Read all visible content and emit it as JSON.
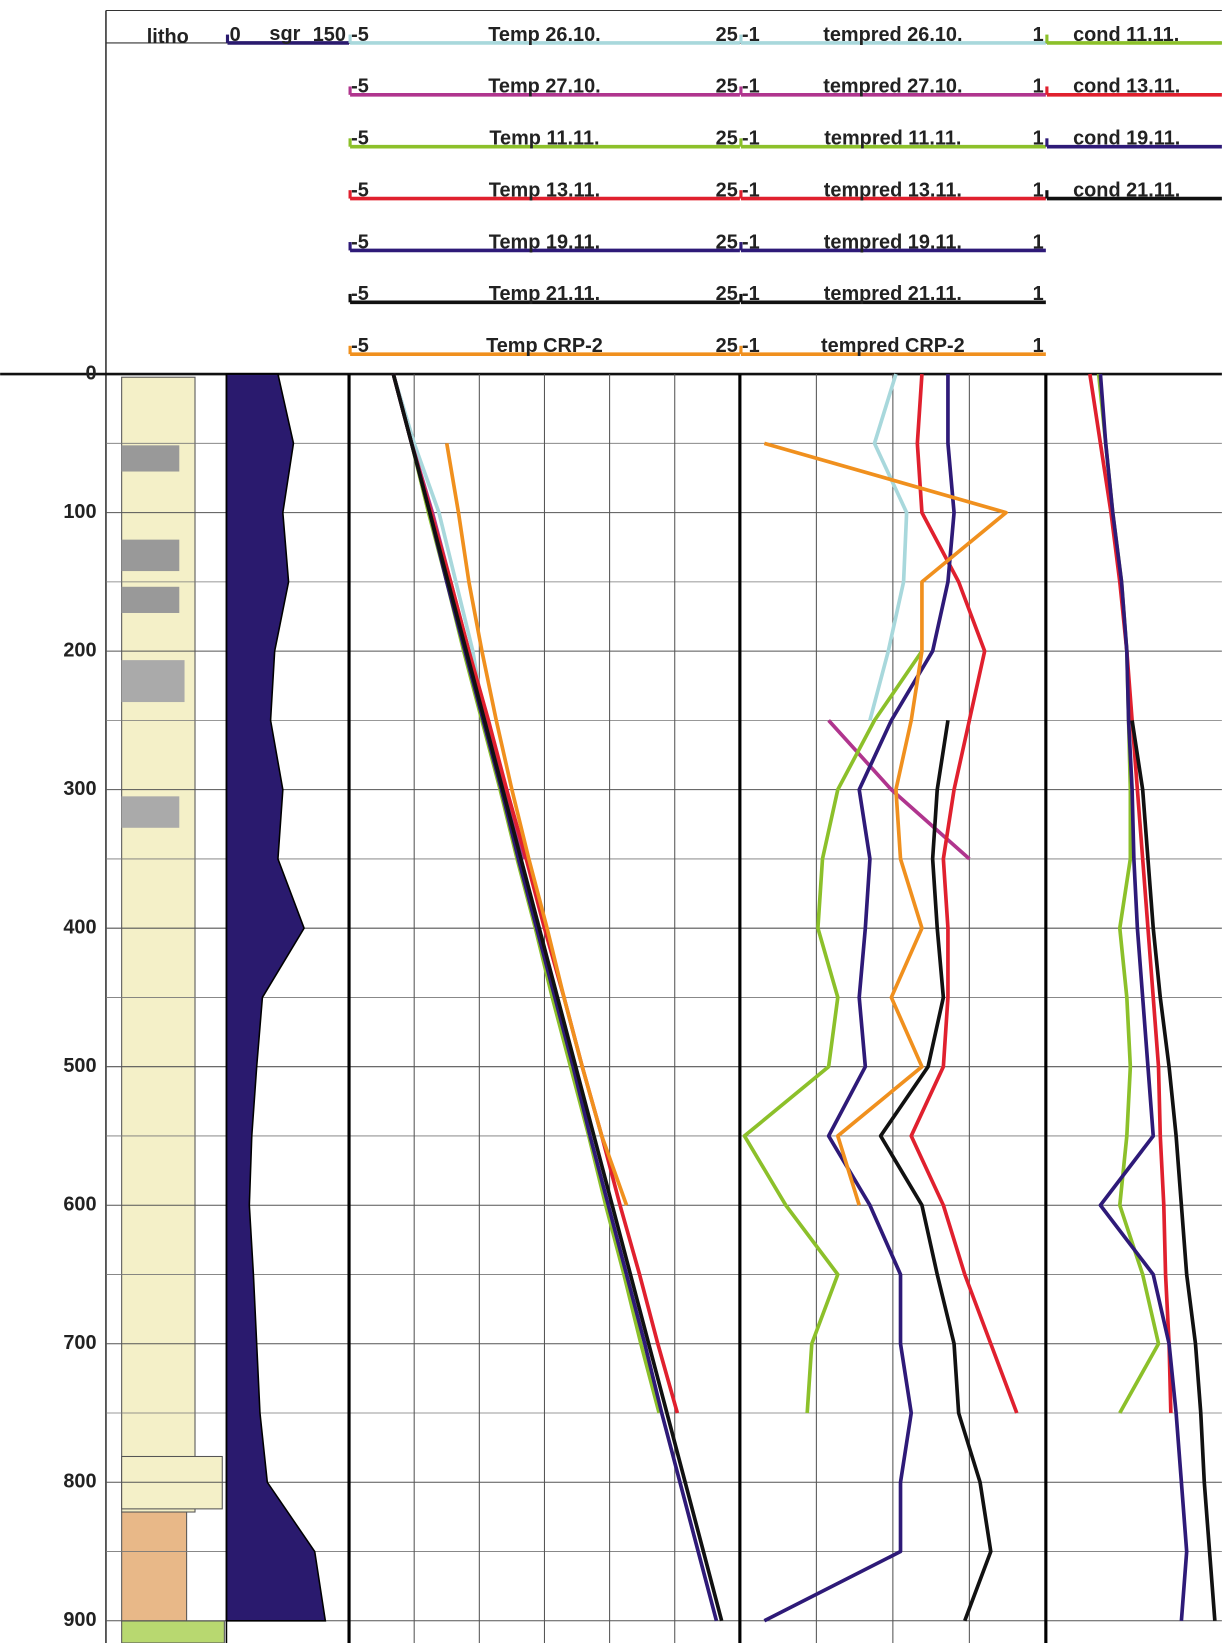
{
  "chart_data": [
    {
      "type": "lithology",
      "title": "litho",
      "xlim": [
        0,
        916
      ],
      "xticks": [
        0,
        100,
        200,
        300,
        400,
        500,
        600,
        700,
        800,
        900
      ],
      "x_minor_ticks": [
        50,
        150,
        250,
        350,
        450,
        550,
        650,
        750,
        850
      ]
    },
    {
      "type": "area",
      "x": [
        0,
        50,
        100,
        150,
        200,
        250,
        300,
        350,
        400,
        450,
        500,
        550,
        600,
        650,
        700,
        750,
        800,
        850,
        900
      ],
      "ylim": [
        0,
        150
      ],
      "series": [
        {
          "name": "sgr",
          "color": "#2a1a6e",
          "values": [
            63,
            82,
            69,
            76,
            59,
            54,
            69,
            63,
            95,
            44,
            37,
            31,
            28,
            33,
            37,
            41,
            50,
            108,
            121
          ]
        }
      ]
    },
    {
      "type": "line",
      "x": [
        0,
        50,
        100,
        150,
        200,
        250,
        300,
        350,
        400,
        450,
        500,
        550,
        600,
        650,
        700,
        750,
        800,
        850,
        900
      ],
      "ylim": [
        -5,
        25
      ],
      "yticks": [
        -5,
        0,
        5,
        10,
        15,
        20,
        25
      ],
      "series": [
        {
          "name": "Temp 26.10.",
          "color": "#a8d8dc",
          "values": [
            -1.6,
            0,
            1.9,
            3.2,
            4.5,
            5.4,
            null,
            null,
            null,
            null,
            null,
            null,
            null,
            null,
            null,
            null,
            null,
            null,
            null
          ]
        },
        {
          "name": "Temp 27.10.",
          "color": "#b0358e",
          "values": [
            -1.6,
            -0.2,
            1.4,
            2.8,
            4.2,
            5.5,
            6.9,
            8.5,
            null,
            null,
            null,
            null,
            null,
            null,
            null,
            null,
            null,
            null,
            null
          ]
        },
        {
          "name": "Temp 11.11.",
          "color": "#8cc02a",
          "values": [
            -1.6,
            -0.2,
            1.1,
            2.5,
            3.8,
            5.2,
            6.6,
            7.9,
            9.3,
            10.6,
            12.0,
            13.4,
            14.7,
            16.1,
            17.4,
            18.8,
            null,
            null,
            null
          ]
        },
        {
          "name": "Temp 13.11.",
          "color": "#e0202e",
          "values": [
            -1.6,
            -0.2,
            1.3,
            2.8,
            4.2,
            5.7,
            7.1,
            8.6,
            10.0,
            11.5,
            12.9,
            14.4,
            15.8,
            17.3,
            18.7,
            20.2,
            null,
            null,
            null
          ]
        },
        {
          "name": "Temp 19.11.",
          "color": "#2e1a78",
          "values": [
            -1.6,
            -0.2,
            1.2,
            2.5,
            3.9,
            5.3,
            6.7,
            8.0,
            9.4,
            10.8,
            12.2,
            13.5,
            14.9,
            16.3,
            17.7,
            19.0,
            20.4,
            21.8,
            23.2
          ]
        },
        {
          "name": "Temp 21.11.",
          "color": "#111111",
          "values": [
            -1.6,
            -0.2,
            1.2,
            2.6,
            4.0,
            5.4,
            6.8,
            8.2,
            9.6,
            11.0,
            12.4,
            13.8,
            15.2,
            16.6,
            18.0,
            19.4,
            20.8,
            22.2,
            23.6
          ]
        },
        {
          "name": "Temp CRP-2",
          "color": "#f0901e",
          "values": [
            null,
            2.5,
            3.4,
            4.2,
            5.2,
            6.3,
            7.5,
            8.8,
            10.2,
            11.5,
            12.9,
            14.4,
            16.3,
            null,
            null,
            null,
            null,
            null,
            null
          ]
        }
      ]
    },
    {
      "type": "line",
      "x": [
        0,
        50,
        100,
        150,
        200,
        250,
        300,
        350,
        400,
        450,
        500,
        550,
        600,
        650,
        700,
        750,
        800,
        850,
        900
      ],
      "ylim": [
        -1,
        1
      ],
      "yticks": [
        -1,
        -0.5,
        0,
        0.5,
        1
      ],
      "series": [
        {
          "name": "tempred 26.10.",
          "color": "#a8d8dc",
          "values": [
            0.02,
            -0.12,
            0.09,
            0.07,
            -0.03,
            -0.15,
            null,
            null,
            null,
            null,
            null,
            null,
            null,
            null,
            null,
            null,
            null,
            null,
            null
          ]
        },
        {
          "name": "tempred 27.10.",
          "color": "#b0358e",
          "values": [
            null,
            null,
            null,
            null,
            null,
            -0.42,
            -0.01,
            0.5,
            null,
            null,
            null,
            null,
            null,
            null,
            null,
            null,
            null,
            null,
            null
          ]
        },
        {
          "name": "tempred 11.11.",
          "color": "#8cc02a",
          "values": [
            null,
            null,
            null,
            null,
            0.19,
            -0.12,
            -0.36,
            -0.46,
            -0.49,
            -0.36,
            -0.42,
            -0.97,
            -0.7,
            -0.36,
            -0.53,
            -0.56,
            null,
            null,
            null
          ]
        },
        {
          "name": "tempred 13.11.",
          "color": "#e0202e",
          "values": [
            0.19,
            0.16,
            0.19,
            0.43,
            0.6,
            0.5,
            0.4,
            0.33,
            0.36,
            0.36,
            0.33,
            0.12,
            0.33,
            0.47,
            0.64,
            0.81,
            null,
            null,
            null
          ]
        },
        {
          "name": "tempred 19.11.",
          "color": "#2e1a78",
          "values": [
            0.36,
            0.36,
            0.4,
            0.36,
            0.26,
            -0.01,
            -0.22,
            -0.15,
            -0.18,
            -0.22,
            -0.18,
            -0.42,
            -0.15,
            0.05,
            0.05,
            0.12,
            0.05,
            0.05,
            -0.84
          ]
        },
        {
          "name": "tempred 21.11.",
          "color": "#111111",
          "values": [
            null,
            null,
            null,
            null,
            null,
            0.36,
            0.29,
            0.26,
            0.29,
            0.33,
            0.23,
            -0.08,
            0.19,
            0.29,
            0.4,
            0.43,
            0.57,
            0.64,
            0.47
          ]
        },
        {
          "name": "tempred CRP-2",
          "color": "#f0901e",
          "values": [
            null,
            -0.84,
            0.74,
            0.19,
            0.19,
            0.12,
            0.02,
            0.05,
            0.19,
            -0.01,
            0.19,
            -0.36,
            -0.22,
            null,
            null,
            null,
            null,
            null,
            null
          ]
        }
      ]
    },
    {
      "type": "line",
      "x": [
        0,
        50,
        100,
        150,
        200,
        250,
        300,
        350,
        400,
        450,
        500,
        550,
        600,
        650,
        700,
        750,
        800,
        850,
        900
      ],
      "ylim": [
        0,
        1
      ],
      "series": [
        {
          "name": "cond 11.11.",
          "color": "#8cc02a",
          "values": [
            0.3,
            0.34,
            0.38,
            0.43,
            0.46,
            0.47,
            0.48,
            0.48,
            0.42,
            0.46,
            0.48,
            0.46,
            0.42,
            0.55,
            0.64,
            0.42,
            null,
            null,
            null
          ]
        },
        {
          "name": "cond 13.11.",
          "color": "#e0202e",
          "values": [
            0.25,
            0.31,
            0.37,
            0.42,
            0.46,
            0.49,
            0.52,
            0.55,
            0.58,
            0.61,
            0.64,
            0.65,
            0.67,
            0.68,
            0.7,
            0.71,
            null,
            null,
            null
          ]
        },
        {
          "name": "cond 19.11.",
          "color": "#2e1a78",
          "values": [
            0.31,
            0.34,
            0.38,
            0.43,
            0.46,
            0.47,
            0.49,
            0.5,
            0.52,
            0.55,
            0.58,
            0.61,
            0.31,
            0.61,
            0.7,
            0.74,
            0.77,
            0.8,
            0.77
          ]
        },
        {
          "name": "cond 21.11.",
          "color": "#111111",
          "values": [
            null,
            null,
            null,
            null,
            null,
            0.49,
            0.55,
            0.58,
            0.61,
            0.65,
            0.7,
            0.74,
            0.77,
            0.8,
            0.85,
            0.88,
            0.9,
            0.93,
            0.96
          ]
        }
      ]
    }
  ]
}
